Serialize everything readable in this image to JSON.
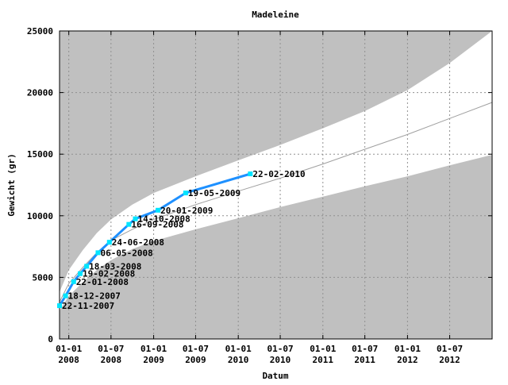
{
  "chart_data": {
    "type": "line",
    "title": "Madeleine",
    "xlabel": "Datum",
    "ylabel": "Gewicht (gr)",
    "ylim": [
      0,
      25000
    ],
    "xlim": [
      "2007-11-22",
      "2012-12-31"
    ],
    "yticks": [
      "0",
      "5000",
      "10000",
      "15000",
      "20000",
      "25000"
    ],
    "xticks": [
      {
        "date": "2008-01-01",
        "line1": "01-01",
        "line2": "2008"
      },
      {
        "date": "2008-07-01",
        "line1": "01-07",
        "line2": "2008"
      },
      {
        "date": "2009-01-01",
        "line1": "01-01",
        "line2": "2009"
      },
      {
        "date": "2009-07-01",
        "line1": "01-07",
        "line2": "2009"
      },
      {
        "date": "2010-01-01",
        "line1": "01-01",
        "line2": "2010"
      },
      {
        "date": "2010-07-01",
        "line1": "01-07",
        "line2": "2010"
      },
      {
        "date": "2011-01-01",
        "line1": "01-01",
        "line2": "2011"
      },
      {
        "date": "2011-07-01",
        "line1": "01-07",
        "line2": "2011"
      },
      {
        "date": "2012-01-01",
        "line1": "01-01",
        "line2": "2012"
      },
      {
        "date": "2012-07-01",
        "line1": "01-07",
        "line2": "2012"
      }
    ],
    "grid": true,
    "series": [
      {
        "values": [
          {
            "x": "2007-11-22",
            "y": 2700,
            "label": "22-11-2007"
          },
          {
            "x": "2007-12-18",
            "y": 3500,
            "label": "18-12-2007"
          },
          {
            "x": "2008-01-22",
            "y": 4650,
            "label": "22-01-2008"
          },
          {
            "x": "2008-02-19",
            "y": 5300,
            "label": "19-02-2008"
          },
          {
            "x": "2008-03-18",
            "y": 5900,
            "label": "18-03-2008"
          },
          {
            "x": "2008-05-06",
            "y": 7000,
            "label": "06-05-2008"
          },
          {
            "x": "2008-06-24",
            "y": 7850,
            "label": "24-06-2008"
          },
          {
            "x": "2008-09-16",
            "y": 9300,
            "label": "16-09-2008"
          },
          {
            "x": "2008-10-14",
            "y": 9750,
            "label": "14-10-2008"
          },
          {
            "x": "2009-01-20",
            "y": 10450,
            "label": "20-01-2009"
          },
          {
            "x": "2009-05-19",
            "y": 11850,
            "label": "19-05-2009"
          },
          {
            "x": "2010-02-22",
            "y": 13400,
            "label": "22-02-2010"
          }
        ]
      }
    ],
    "reference_band": {
      "upper": [
        {
          "x": "2007-11-22",
          "y": 3800
        },
        {
          "x": "2008-01-01",
          "y": 5600
        },
        {
          "x": "2008-03-01",
          "y": 7200
        },
        {
          "x": "2008-05-01",
          "y": 8600
        },
        {
          "x": "2008-07-01",
          "y": 9700
        },
        {
          "x": "2008-10-01",
          "y": 10900
        },
        {
          "x": "2009-01-01",
          "y": 11850
        },
        {
          "x": "2009-07-01",
          "y": 13200
        },
        {
          "x": "2010-01-01",
          "y": 14500
        },
        {
          "x": "2010-07-01",
          "y": 15750
        },
        {
          "x": "2011-01-01",
          "y": 17100
        },
        {
          "x": "2011-07-01",
          "y": 18500
        },
        {
          "x": "2012-01-01",
          "y": 20200
        },
        {
          "x": "2012-07-01",
          "y": 22400
        },
        {
          "x": "2012-12-31",
          "y": 25000
        }
      ],
      "median": [
        {
          "x": "2007-11-22",
          "y": 3000
        },
        {
          "x": "2008-01-01",
          "y": 4500
        },
        {
          "x": "2008-03-01",
          "y": 5800
        },
        {
          "x": "2008-05-01",
          "y": 7000
        },
        {
          "x": "2008-07-01",
          "y": 8000
        },
        {
          "x": "2008-10-01",
          "y": 8900
        },
        {
          "x": "2009-01-01",
          "y": 9700
        },
        {
          "x": "2009-07-01",
          "y": 10900
        },
        {
          "x": "2010-01-01",
          "y": 12000
        },
        {
          "x": "2010-07-01",
          "y": 13050
        },
        {
          "x": "2011-01-01",
          "y": 14200
        },
        {
          "x": "2011-07-01",
          "y": 15400
        },
        {
          "x": "2012-01-01",
          "y": 16600
        },
        {
          "x": "2012-07-01",
          "y": 17900
        },
        {
          "x": "2012-12-31",
          "y": 19200
        }
      ],
      "lower": [
        {
          "x": "2007-11-22",
          "y": 2300
        },
        {
          "x": "2008-01-01",
          "y": 3500
        },
        {
          "x": "2008-03-01",
          "y": 4600
        },
        {
          "x": "2008-05-01",
          "y": 5600
        },
        {
          "x": "2008-07-01",
          "y": 6400
        },
        {
          "x": "2008-10-01",
          "y": 7300
        },
        {
          "x": "2009-01-01",
          "y": 7950
        },
        {
          "x": "2009-07-01",
          "y": 8900
        },
        {
          "x": "2010-01-01",
          "y": 9800
        },
        {
          "x": "2010-07-01",
          "y": 10700
        },
        {
          "x": "2011-01-01",
          "y": 11550
        },
        {
          "x": "2011-07-01",
          "y": 12400
        },
        {
          "x": "2012-01-01",
          "y": 13200
        },
        {
          "x": "2012-07-01",
          "y": 14100
        },
        {
          "x": "2012-12-31",
          "y": 14950
        }
      ]
    },
    "colors": {
      "outside_band": "#c0c0c0",
      "inside_band": "#ffffff",
      "median_line": "#a0a0a0",
      "series_line": "#1e90ff",
      "marker": "#00e5ff",
      "grid": "#909090"
    }
  }
}
